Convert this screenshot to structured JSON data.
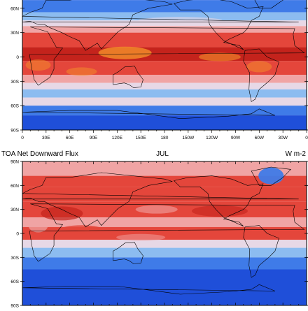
{
  "top_panel": {
    "lat_labels": [
      "60N",
      "30N",
      "0",
      "30S",
      "60S",
      "90S"
    ],
    "lon_labels": [
      "0",
      "30E",
      "60E",
      "90E",
      "120E",
      "150E",
      "180",
      "150W",
      "120W",
      "90W",
      "60W",
      "30W",
      "0"
    ],
    "pattern": "equatorial-warm"
  },
  "bottom_panel": {
    "title_left": "TOA Net Downward Flux",
    "title_center": "JUL",
    "title_right": "W m-2",
    "lat_labels": [
      "90N",
      "60N",
      "30N",
      "0",
      "30S",
      "60S",
      "90S"
    ],
    "pattern": "northern-warm"
  },
  "colors": {
    "deep_blue": "#1f4fd9",
    "blue": "#3f7be8",
    "light_blue": "#8cbcf0",
    "pale": "#e7d8e6",
    "pink": "#f0a4a4",
    "red": "#e4463b",
    "dark_red": "#c4231c",
    "orange": "#f4902a",
    "coastline": "#000000"
  }
}
